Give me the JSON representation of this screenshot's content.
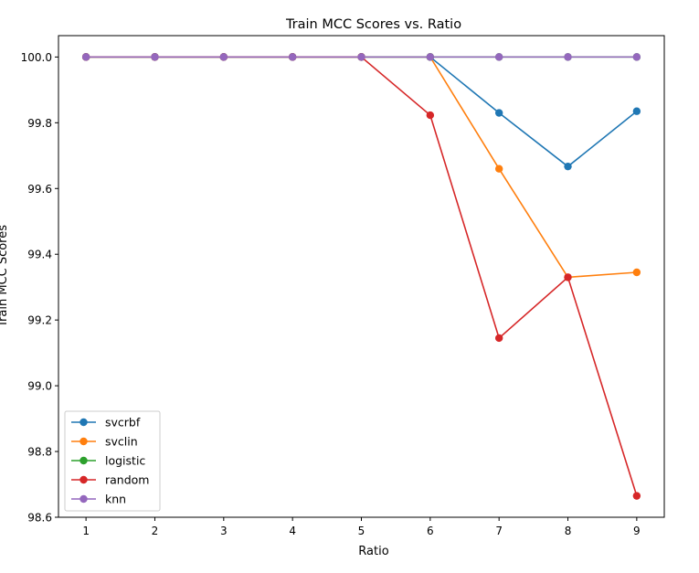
{
  "chart_data": {
    "type": "line",
    "title": "Train MCC Scores vs. Ratio",
    "xlabel": "Ratio",
    "ylabel": "Train MCC Scores",
    "x": [
      1,
      2,
      3,
      4,
      5,
      6,
      7,
      8,
      9
    ],
    "xlim": [
      0.6,
      9.4
    ],
    "ylim": [
      98.6,
      100.065
    ],
    "y_ticks": [
      "98.6",
      "98.8",
      "99.0",
      "99.2",
      "99.4",
      "99.6",
      "99.8",
      "100.0"
    ],
    "x_ticks": [
      "1",
      "2",
      "3",
      "4",
      "5",
      "6",
      "7",
      "8",
      "9"
    ],
    "grid": false,
    "legend_position": "lower-left",
    "series": [
      {
        "name": "svcrbf",
        "color": "#1f77b4",
        "values": [
          100.0,
          100.0,
          100.0,
          100.0,
          100.0,
          100.0,
          99.83,
          99.667,
          99.835
        ]
      },
      {
        "name": "svclin",
        "color": "#ff7f0e",
        "values": [
          100.0,
          100.0,
          100.0,
          100.0,
          100.0,
          100.0,
          99.66,
          99.33,
          99.345
        ]
      },
      {
        "name": "logistic",
        "color": "#2ca02c",
        "values": [
          100.0,
          100.0,
          100.0,
          100.0,
          100.0,
          100.0,
          100.0,
          100.0,
          100.0
        ]
      },
      {
        "name": "random",
        "color": "#d62728",
        "values": [
          100.0,
          100.0,
          100.0,
          100.0,
          100.0,
          99.823,
          99.145,
          99.33,
          98.665
        ]
      },
      {
        "name": "knn",
        "color": "#9467bd",
        "values": [
          100.0,
          100.0,
          100.0,
          100.0,
          100.0,
          100.0,
          100.0,
          100.0,
          100.0
        ]
      }
    ]
  }
}
